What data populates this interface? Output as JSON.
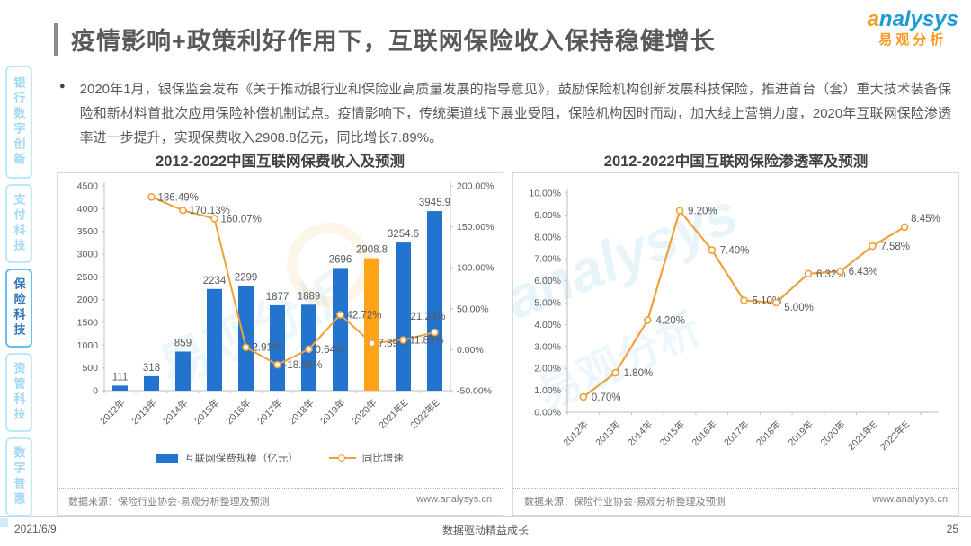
{
  "header": {
    "title": "疫情影响+政策利好作用下，互联网保险收入保持稳健增长",
    "logo": {
      "en": "analysys",
      "cn": "易观分析"
    }
  },
  "sidebar": {
    "items": [
      {
        "label": "银行数字创新",
        "active": false
      },
      {
        "label": "支付科技",
        "active": false
      },
      {
        "label": "保险科技",
        "active": true
      },
      {
        "label": "资管科技",
        "active": false
      },
      {
        "label": "数字普惠",
        "active": false
      }
    ]
  },
  "bullet": {
    "marker": "●",
    "text": "2020年1月，银保监会发布《关于推动银行业和保险业高质量发展的指导意见》，鼓励保险机构创新发展科技保险，推进首台（套）重大技术装备保险和新材料首批次应用保险补偿机制试点。疫情影响下，传统渠道线下展业受阻，保险机构因时而动，加大线上营销力度，2020年互联网保险渗透率进一步提升，实现保费收入2908.8亿元，同比增长7.89%。"
  },
  "chart_data": [
    {
      "type": "bar",
      "title": "2012-2022中国互联网保费收入及预测",
      "categories": [
        "2012年",
        "2013年",
        "2014年",
        "2015年",
        "2016年",
        "2017年",
        "2018年",
        "2019年",
        "2020年",
        "2021年E",
        "2022年E"
      ],
      "series": [
        {
          "name": "互联网保费规模（亿元）",
          "type": "bar",
          "values": [
            111,
            318,
            859,
            2234,
            2299,
            1877,
            1889,
            2696,
            2908.8,
            3254.6,
            3945.9
          ],
          "labels": [
            "111",
            "318",
            "859",
            "2234",
            "2299",
            "1877",
            "1889",
            "2696",
            "2908.8",
            "3254.6",
            "3945.9"
          ],
          "color": "#2374CE",
          "highlight_index": 8,
          "highlight_color": "#FFA319"
        },
        {
          "name": "同比增速",
          "type": "line",
          "values": [
            null,
            186.49,
            170.13,
            160.07,
            2.91,
            -18.36,
            0.64,
            42.72,
            7.89,
            11.89,
            21.24
          ],
          "labels": [
            null,
            "186.49%",
            "170.13%",
            "160.07%",
            "2.91%",
            "-18.36%",
            "0.64%",
            "42.72%",
            "7.89%",
            "11.89%",
            "21.24%"
          ],
          "color": "#EFA13B"
        }
      ],
      "y_left": {
        "min": 0,
        "max": 4500,
        "step": 500
      },
      "y_right": {
        "min": -50,
        "max": 200,
        "step": 50
      },
      "legend_position": "bottom",
      "grid": false,
      "source": "数据来源：保险行业协会·易观分析整理及预测",
      "source_url": "www.analysys.cn"
    },
    {
      "type": "line",
      "title": "2012-2022中国互联网保险渗透率及预测",
      "categories": [
        "2012年",
        "2013年",
        "2014年",
        "2015年",
        "2016年",
        "2017年",
        "2018年",
        "2019年",
        "2020年",
        "2021年E",
        "2022年E"
      ],
      "series": [
        {
          "name": "渗透率",
          "type": "line",
          "values": [
            0.7,
            1.8,
            4.2,
            9.2,
            7.4,
            5.1,
            5.0,
            6.32,
            6.43,
            7.58,
            8.45
          ],
          "labels": [
            "0.70%",
            "1.80%",
            "4.20%",
            "9.20%",
            "7.40%",
            "5.10%",
            "5.00%",
            "6.32%",
            "6.43%",
            "7.58%",
            "8.45%"
          ],
          "color": "#EFA13B"
        }
      ],
      "y_left": {
        "min": 0,
        "max": 10,
        "step": 1
      },
      "grid": false,
      "source": "数据来源：保险行业协会·易观分析整理及预测",
      "source_url": "www.analysys.cn"
    }
  ],
  "decor": {
    "watermark_en": "analysys",
    "watermark_cn": "易观分析"
  },
  "footer": {
    "date": "2021/6/9",
    "center": "数据驱动精益成长",
    "page": "25"
  }
}
